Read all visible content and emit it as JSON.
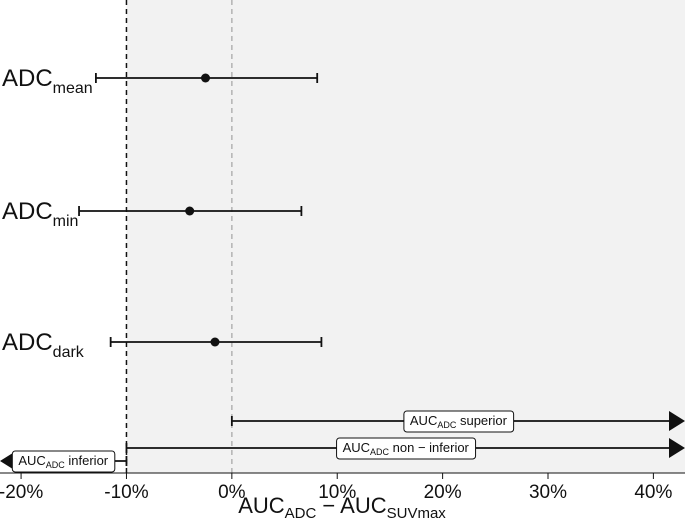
{
  "chart_data": {
    "type": "forest",
    "xlabel": {
      "main": "AUC",
      "sub1": "ADC",
      "mid": " − AUC",
      "sub2": "SUVmax"
    },
    "xlim": [
      -22,
      43
    ],
    "xticks": [
      -20,
      -10,
      0,
      10,
      20,
      30,
      40
    ],
    "xtick_labels": [
      "-20%",
      "-10%",
      "0%",
      "10%",
      "20%",
      "30%",
      "40%"
    ],
    "shaded_region_from": -10,
    "reference_lines": [
      {
        "x": -10,
        "style": "dashed",
        "color": "#111111",
        "role": "non-inferiority margin"
      },
      {
        "x": 0,
        "style": "dashed",
        "color": "#b3b3b3",
        "role": "zero"
      }
    ],
    "rows": [
      {
        "label_main": "ADC",
        "label_sub": "mean",
        "estimate": -2.5,
        "ci_low": -12.9,
        "ci_high": 8.1
      },
      {
        "label_main": "ADC",
        "label_sub": "min",
        "estimate": -4.0,
        "ci_low": -14.5,
        "ci_high": 6.6
      },
      {
        "label_main": "ADC",
        "label_sub": "dark",
        "estimate": -1.6,
        "ci_low": -11.5,
        "ci_high": 8.5
      }
    ],
    "regions": [
      {
        "text_main": "AUC",
        "text_sub": "ADC",
        "text_rest": " superior",
        "from": 0,
        "to": 43,
        "direction": "right"
      },
      {
        "text_main": "AUC",
        "text_sub": "ADC",
        "text_rest": " non − inferior",
        "from": -10,
        "to": 43,
        "direction": "right"
      },
      {
        "text_main": "AUC",
        "text_sub": "ADC",
        "text_rest": " inferior",
        "from": -22,
        "to": -10,
        "direction": "left"
      }
    ],
    "colors": {
      "panel": "#f2f2f2",
      "marks": "#111111",
      "zero_line": "#b3b3b3"
    }
  }
}
